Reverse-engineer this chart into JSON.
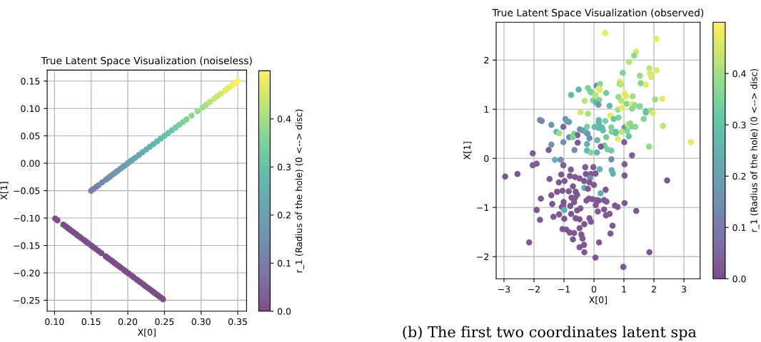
{
  "chart_data": [
    {
      "type": "scatter",
      "title": "True Latent Space Visualization (noiseless)",
      "xlabel": "X[0]",
      "ylabel": "X[1]",
      "clabel": "r_1 (Radius of the hole) (0 <--> disc)",
      "marker": "circle",
      "grid": true,
      "xlim": [
        0.09,
        0.362
      ],
      "ylim": [
        -0.27,
        0.17
      ],
      "xticks": [
        {
          "value": 0.1,
          "label": "0.10"
        },
        {
          "value": 0.15,
          "label": "0.15"
        },
        {
          "value": 0.2,
          "label": "0.20"
        },
        {
          "value": 0.25,
          "label": "0.25"
        },
        {
          "value": 0.3,
          "label": "0.30"
        },
        {
          "value": 0.35,
          "label": "0.35"
        }
      ],
      "yticks": [
        {
          "value": -0.25,
          "label": "−0.25"
        },
        {
          "value": -0.2,
          "label": "−0.20"
        },
        {
          "value": -0.15,
          "label": "−0.15"
        },
        {
          "value": -0.1,
          "label": "−0.10"
        },
        {
          "value": -0.05,
          "label": "−0.05"
        },
        {
          "value": 0,
          "label": "0.00"
        },
        {
          "value": 0.05,
          "label": "0.05"
        },
        {
          "value": 0.1,
          "label": "0.10"
        },
        {
          "value": 0.15,
          "label": "0.15"
        }
      ],
      "clim": [
        0,
        0.5
      ],
      "cticks": [
        {
          "value": 0,
          "label": "0.0"
        },
        {
          "value": 0.1,
          "label": "0.1"
        },
        {
          "value": 0.2,
          "label": "0.2"
        },
        {
          "value": 0.3,
          "label": "0.3"
        },
        {
          "value": 0.4,
          "label": "0.4"
        }
      ],
      "x": [
        0.15,
        0.153,
        0.157,
        0.16,
        0.165,
        0.17,
        0.173,
        0.176,
        0.18,
        0.183,
        0.186,
        0.19,
        0.193,
        0.196,
        0.2,
        0.203,
        0.206,
        0.21,
        0.215,
        0.22,
        0.225,
        0.23,
        0.235,
        0.24,
        0.245,
        0.25,
        0.255,
        0.26,
        0.265,
        0.27,
        0.275,
        0.28,
        0.287,
        0.295,
        0.302,
        0.307,
        0.312,
        0.318,
        0.322,
        0.327,
        0.333,
        0.337,
        0.341,
        0.344,
        0.347,
        0.35,
        0.101,
        0.104,
        0.112,
        0.115,
        0.118,
        0.121,
        0.124,
        0.127,
        0.13,
        0.133,
        0.136,
        0.14,
        0.143,
        0.146,
        0.15,
        0.153,
        0.156,
        0.16,
        0.164,
        0.17,
        0.173,
        0.176,
        0.179,
        0.182,
        0.185,
        0.188,
        0.191,
        0.195,
        0.198,
        0.201,
        0.205,
        0.208,
        0.212,
        0.215,
        0.218,
        0.221,
        0.224,
        0.227,
        0.23,
        0.233,
        0.236,
        0.239,
        0.242,
        0.245,
        0.248
      ],
      "values": [
        -0.05,
        -0.047,
        -0.043,
        -0.04,
        -0.035,
        -0.03,
        -0.027,
        -0.024,
        -0.02,
        -0.017,
        -0.014,
        -0.01,
        -0.007,
        -0.004,
        0.0,
        0.003,
        0.006,
        0.01,
        0.015,
        0.02,
        0.025,
        0.03,
        0.035,
        0.04,
        0.045,
        0.05,
        0.055,
        0.06,
        0.065,
        0.07,
        0.075,
        0.08,
        0.087,
        0.095,
        0.102,
        0.107,
        0.112,
        0.118,
        0.122,
        0.127,
        0.133,
        0.137,
        0.141,
        0.144,
        0.147,
        0.15,
        -0.101,
        -0.104,
        -0.112,
        -0.115,
        -0.118,
        -0.121,
        -0.124,
        -0.127,
        -0.13,
        -0.133,
        -0.136,
        -0.14,
        -0.143,
        -0.146,
        -0.15,
        -0.153,
        -0.156,
        -0.16,
        -0.164,
        -0.17,
        -0.173,
        -0.176,
        -0.179,
        -0.182,
        -0.185,
        -0.188,
        -0.191,
        -0.195,
        -0.198,
        -0.201,
        -0.205,
        -0.208,
        -0.212,
        -0.215,
        -0.218,
        -0.221,
        -0.224,
        -0.227,
        -0.23,
        -0.233,
        -0.236,
        -0.239,
        -0.242,
        -0.245,
        -0.248
      ],
      "cvalues": [
        0.1,
        0.11,
        0.11,
        0.12,
        0.13,
        0.14,
        0.15,
        0.15,
        0.16,
        0.17,
        0.17,
        0.18,
        0.19,
        0.19,
        0.2,
        0.21,
        0.21,
        0.22,
        0.23,
        0.24,
        0.25,
        0.26,
        0.27,
        0.28,
        0.29,
        0.3,
        0.31,
        0.32,
        0.33,
        0.34,
        0.35,
        0.36,
        0.37,
        0.39,
        0.4,
        0.41,
        0.42,
        0.44,
        0.44,
        0.45,
        0.47,
        0.47,
        0.48,
        0.49,
        0.49,
        0.5,
        0,
        0,
        0,
        0,
        0,
        0,
        0,
        0,
        0,
        0,
        0,
        0,
        0,
        0,
        0,
        0,
        0,
        0,
        0,
        0,
        0,
        0,
        0,
        0,
        0,
        0,
        0,
        0,
        0,
        0,
        0,
        0,
        0,
        0,
        0,
        0,
        0,
        0,
        0,
        0,
        0,
        0,
        0,
        0,
        0
      ]
    },
    {
      "type": "scatter",
      "title": "True Latent Space Visualization (observed)",
      "xlabel": "X[0]",
      "ylabel": "X[1]",
      "clabel": "r_1 (Radius of the hole) (0 <--> disc)",
      "marker": "circle",
      "grid": true,
      "annotations": [
        "(b) The first two coordinates latent spa"
      ],
      "xlim": [
        -3.26,
        3.54
      ],
      "ylim": [
        -2.45,
        2.77
      ],
      "xticks": [
        {
          "value": -3,
          "label": "−3"
        },
        {
          "value": -2,
          "label": "−2"
        },
        {
          "value": -1,
          "label": "−1"
        },
        0,
        1,
        2,
        3
      ],
      "yticks": [
        {
          "value": -2,
          "label": "−2"
        },
        {
          "value": -1,
          "label": "−1"
        },
        0,
        1,
        2
      ],
      "clim": [
        0,
        0.5
      ],
      "cticks": [
        {
          "value": 0,
          "label": "0.0"
        },
        {
          "value": 0.1,
          "label": "0.1"
        },
        {
          "value": 0.2,
          "label": "0.2"
        },
        {
          "value": 0.3,
          "label": "0.3"
        },
        {
          "value": 0.4,
          "label": "0.4"
        }
      ],
      "x": [
        0.375,
        2.08,
        1.41,
        1.34,
        1.17,
        0.96,
        1.85,
        2.09,
        1.53,
        1.87,
        1.91,
        0.86,
        0.86,
        0.9,
        1.56,
        1.73,
        0.09,
        0.2,
        0.16,
        0.2,
        0.41,
        -0.2,
        -0.12,
        -0.08,
        -0.51,
        -0.76,
        1.02,
        1.07,
        1.29,
        0.82,
        0.05,
        -0.03,
        0.17,
        -0.31,
        0.06,
        0.15,
        0.52,
        0.91,
        1.09,
        1.27,
        1.36,
        1.53,
        2.04,
        2.28,
        1.27,
        0.8,
        0.93,
        -0.45,
        -0.2,
        1.73,
        1.73,
        1.89,
        1.96,
        0.55,
        0.82,
        0.66,
        1.66,
        -1.8,
        -1.74,
        -0.95,
        -0.89,
        -0.83,
        0.16,
        0.16,
        0.38,
        -1.42,
        -1.02,
        -0.23,
        0.02,
        0.27,
        0.58,
        1.02,
        1.13,
        1.21,
        1.26,
        1.38,
        2.3,
        -0.47,
        -0.38,
        0.16,
        0.3,
        0.59,
        0.73,
        0.93,
        1.11,
        -1.25,
        -1.16,
        -0.25,
        -0.21,
        -0.66,
        -0.55,
        -0.83,
        -0.7,
        -0.15,
        0.41,
        0.73,
        1.16,
        0.8,
        3.23,
        0.11,
        -1.02,
        -0.54,
        1.01,
        -0.23,
        -1.42,
        0.35,
        1.84,
        -2.04,
        -1.51,
        -0.65,
        0.23,
        0.45,
        0.58,
        1.27,
        -0.23,
        -0.11,
        0.1,
        -1.3,
        -1.11,
        0.58,
        -2.04,
        -1.91,
        -1.02,
        1.02,
        -0.29,
        -0.02,
        -0.77,
        0.19,
        0.59,
        0.63,
        -2.96,
        -2.55,
        -1.09,
        -0.8,
        -0.63,
        -0.27,
        -0.1,
        0.05,
        1.02,
        -0.48,
        -0.13,
        -1.48,
        -0.98,
        -1.17,
        -0.33,
        -0.15,
        2.44,
        -0.7,
        0.0,
        -0.32,
        -0.2,
        0.39,
        -1.23,
        -1.05,
        -0.84,
        -0.61,
        -0.56,
        0.22,
        -1.42,
        -1.77,
        -0.75,
        -0.63,
        -0.25,
        -0.17,
        -0.05,
        0.09,
        0.16,
        0.34,
        -1.01,
        -0.66,
        -1.39,
        -1.02,
        -0.79,
        0.06,
        0.42,
        1.02,
        0.7,
        0.79,
        -1.07,
        -0.45,
        -0.56,
        -1.91,
        -0.99,
        0.13,
        0.34,
        1.41,
        -1.16,
        -0.76,
        0.52,
        -1.35,
        -1.8,
        -0.61,
        -0.15,
        0.4,
        -0.99,
        -0.48,
        -0.32,
        -0.1,
        0.62,
        -0.48,
        -1.05,
        -0.92,
        -0.81,
        -0.66,
        0.55,
        -0.42,
        -0.38,
        -0.7,
        -2.16,
        0.17,
        -0.33,
        -0.48,
        -0.32,
        1.85,
        0.05,
        0.98
      ],
      "values": [
        2.55,
        2.43,
        2.17,
        2.09,
        1.96,
        1.74,
        1.83,
        1.79,
        1.68,
        1.72,
        1.66,
        1.56,
        1.51,
        1.5,
        1.53,
        1.5,
        1.48,
        1.51,
        1.42,
        1.39,
        1.33,
        1.43,
        1.36,
        1.34,
        1.4,
        1.29,
        1.32,
        1.26,
        1.26,
        1.25,
        1.29,
        1.18,
        1.19,
        1.17,
        1.14,
        1.09,
        1.07,
        1.17,
        1.11,
        1.1,
        1.08,
        1.06,
        1.2,
        1.21,
        1.01,
        0.99,
        1.03,
        0.94,
        0.91,
        0.96,
        0.93,
        0.97,
        0.92,
        0.87,
        0.83,
        0.8,
        0.8,
        0.78,
        0.76,
        0.8,
        0.75,
        0.74,
        0.78,
        0.73,
        0.76,
        0.68,
        0.64,
        0.64,
        0.64,
        0.63,
        0.63,
        0.63,
        0.69,
        0.71,
        0.65,
        0.64,
        0.66,
        0.59,
        0.57,
        0.62,
        0.57,
        0.54,
        0.54,
        0.54,
        0.56,
        0.54,
        0.51,
        0.52,
        0.5,
        0.5,
        0.47,
        0.43,
        0.43,
        0.41,
        0.43,
        0.51,
        0.45,
        0.39,
        0.33,
        0.37,
        0.33,
        0.32,
        0.33,
        0.29,
        0.28,
        0.26,
        0.24,
        0.1,
        0.17,
        0.17,
        0.24,
        0.18,
        0.16,
        0.06,
        0.16,
        0.12,
        0.12,
        -0.03,
        -0.03,
        -0.02,
        -0.14,
        -0.11,
        -0.14,
        -0.12,
        -0.18,
        -0.18,
        -0.23,
        -0.22,
        -0.24,
        -0.31,
        -0.37,
        -0.32,
        -0.33,
        -0.36,
        -0.38,
        -0.32,
        -0.32,
        -0.31,
        -0.35,
        -0.41,
        -0.4,
        -0.42,
        -0.46,
        -0.49,
        -0.46,
        -0.49,
        -0.45,
        -0.57,
        -0.54,
        -0.6,
        -0.62,
        -0.64,
        -0.68,
        -0.66,
        -0.67,
        -0.68,
        -0.74,
        -0.71,
        -0.75,
        -0.82,
        -0.8,
        -0.8,
        -0.86,
        -0.82,
        -0.83,
        -0.85,
        -0.86,
        -0.85,
        -0.89,
        -0.89,
        -0.93,
        -0.96,
        -0.97,
        -0.95,
        -0.88,
        -0.91,
        -0.96,
        -0.99,
        -0.99,
        -1.02,
        -1.06,
        -1.05,
        -1.05,
        -1.08,
        -1.04,
        -1.07,
        -1.14,
        -1.13,
        -1.13,
        -1.19,
        -1.25,
        -1.22,
        -1.22,
        -1.16,
        -1.23,
        -1.24,
        -1.34,
        -1.29,
        -1.37,
        -1.42,
        -1.44,
        -1.45,
        -1.51,
        -1.52,
        -1.53,
        -1.55,
        -1.63,
        -1.65,
        -1.71,
        -1.71,
        -1.76,
        -1.81,
        -1.91,
        -1.91,
        -2.02,
        -2.21
      ],
      "cvalues": [
        0.48,
        0.47,
        0.46,
        0.37,
        0.42,
        0.35,
        0.43,
        0.46,
        0.39,
        0.46,
        0.46,
        0.47,
        0.37,
        0.43,
        0.36,
        0.47,
        0.13,
        0.36,
        0.46,
        0.47,
        0.33,
        0.35,
        0.34,
        0.35,
        0.25,
        0.27,
        0.47,
        0.47,
        0.4,
        0.38,
        0.43,
        0.36,
        0.35,
        0.43,
        0.28,
        0.17,
        0.27,
        0.43,
        0.37,
        0.47,
        0.38,
        0.37,
        0.39,
        0.47,
        0.37,
        0.4,
        0.47,
        0.45,
        0.41,
        0.28,
        0.3,
        0.4,
        0.46,
        0.47,
        0.35,
        0.32,
        0.36,
        0.12,
        0.13,
        0.16,
        0.22,
        0.18,
        0.27,
        0.26,
        0.35,
        0.17,
        0.05,
        0.34,
        0.29,
        0.28,
        0.35,
        0.16,
        0.45,
        0.37,
        0.36,
        0.37,
        0.43,
        0.15,
        0.18,
        0.27,
        0.29,
        0.36,
        0.3,
        0.43,
        0.36,
        0.28,
        0.4,
        0.25,
        0.17,
        0.35,
        0.03,
        0.15,
        0.35,
        0.16,
        0.33,
        0.31,
        0.31,
        0.47,
        0.47,
        0.27,
        0.16,
        0.02,
        0.03,
        0.24,
        0.15,
        0.33,
        0.38,
        0.03,
        0.03,
        0.14,
        0.03,
        0.34,
        0.33,
        0.03,
        0.26,
        0.36,
        0.27,
        0.25,
        0.16,
        0.15,
        0.03,
        0.03,
        0.03,
        0.03,
        0.03,
        0.03,
        0.03,
        0.25,
        0.25,
        0.25,
        0.02,
        0.02,
        0.02,
        0.02,
        0.02,
        0.02,
        0.02,
        0.02,
        0.02,
        0.02,
        0.15,
        0.02,
        0.02,
        0.02,
        0.02,
        0.02,
        0.02,
        0.02,
        0.02,
        0.24,
        0.02,
        0.02,
        0.02,
        0.02,
        0.02,
        0.02,
        0.02,
        0.24,
        0.02,
        0.02,
        0.02,
        0.02,
        0.02,
        0.02,
        0.02,
        0.02,
        0.02,
        0.02,
        0.02,
        0.02,
        0.02,
        0.02,
        0.02,
        0.02,
        0.02,
        0.02,
        0.02,
        0.02,
        0.02,
        0.02,
        0.02,
        0.02,
        0.25,
        0.02,
        0.02,
        0.02,
        0.02,
        0.02,
        0.02,
        0.02,
        0.02,
        0.02,
        0.02,
        0.02,
        0.02,
        0.02,
        0.02,
        0.02,
        0.02,
        0.02,
        0.02,
        0.02,
        0.02,
        0.02,
        0.02,
        0.02,
        0.02,
        0.02,
        0.02,
        0.02,
        0.02,
        0.02,
        0.02,
        0.02,
        0.02,
        0.02
      ]
    }
  ]
}
